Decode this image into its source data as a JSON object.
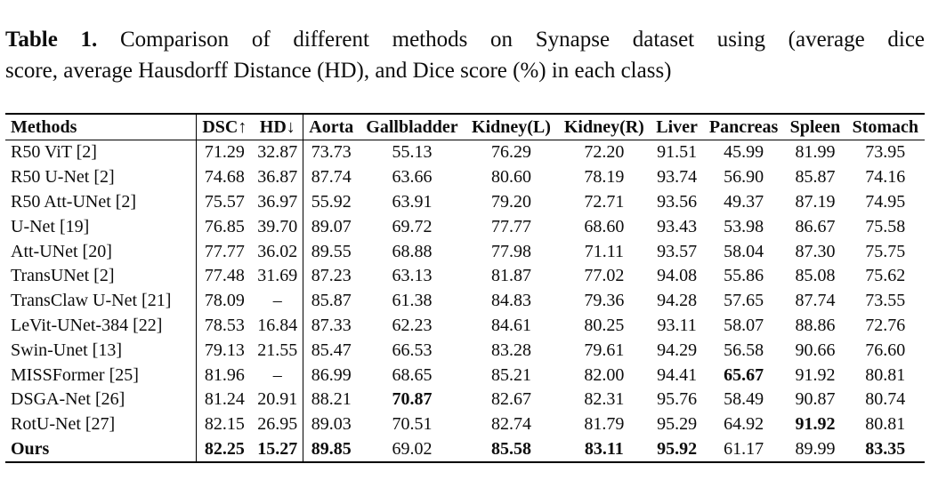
{
  "caption": {
    "label": "Table 1.",
    "line1": "Comparison of different methods on Synapse dataset using (average dice",
    "line2": "score, average Hausdorff Distance (HD), and Dice score (%) in each class)"
  },
  "table": {
    "columns": [
      {
        "key": "methods",
        "label": "Methods"
      },
      {
        "key": "dsc",
        "label": "DSC↑"
      },
      {
        "key": "hd",
        "label": "HD↓"
      },
      {
        "key": "aorta",
        "label": "Aorta"
      },
      {
        "key": "gallbladder",
        "label": "Gallbladder"
      },
      {
        "key": "kidney-l",
        "label": "Kidney(L)"
      },
      {
        "key": "kidney-r",
        "label": "Kidney(R)"
      },
      {
        "key": "liver",
        "label": "Liver"
      },
      {
        "key": "pancreas",
        "label": "Pancreas"
      },
      {
        "key": "spleen",
        "label": "Spleen"
      },
      {
        "key": "stomach",
        "label": "Stomach"
      }
    ],
    "rows": [
      {
        "method": "R50 ViT [2]",
        "bold_method": false,
        "values": [
          "71.29",
          "32.87",
          "73.73",
          "55.13",
          "76.29",
          "72.20",
          "91.51",
          "45.99",
          "81.99",
          "73.95"
        ],
        "bold": []
      },
      {
        "method": "R50 U-Net [2]",
        "bold_method": false,
        "values": [
          "74.68",
          "36.87",
          "87.74",
          "63.66",
          "80.60",
          "78.19",
          "93.74",
          "56.90",
          "85.87",
          "74.16"
        ],
        "bold": []
      },
      {
        "method": "R50 Att-UNet [2]",
        "bold_method": false,
        "values": [
          "75.57",
          "36.97",
          "55.92",
          "63.91",
          "79.20",
          "72.71",
          "93.56",
          "49.37",
          "87.19",
          "74.95"
        ],
        "bold": []
      },
      {
        "method": "U-Net [19]",
        "bold_method": false,
        "values": [
          "76.85",
          "39.70",
          "89.07",
          "69.72",
          "77.77",
          "68.60",
          "93.43",
          "53.98",
          "86.67",
          "75.58"
        ],
        "bold": []
      },
      {
        "method": "Att-UNet [20]",
        "bold_method": false,
        "values": [
          "77.77",
          "36.02",
          "89.55",
          "68.88",
          "77.98",
          "71.11",
          "93.57",
          "58.04",
          "87.30",
          "75.75"
        ],
        "bold": []
      },
      {
        "method": "TransUNet [2]",
        "bold_method": false,
        "values": [
          "77.48",
          "31.69",
          "87.23",
          "63.13",
          "81.87",
          "77.02",
          "94.08",
          "55.86",
          "85.08",
          "75.62"
        ],
        "bold": []
      },
      {
        "method": "TransClaw U-Net [21]",
        "bold_method": false,
        "values": [
          "78.09",
          "–",
          "85.87",
          "61.38",
          "84.83",
          "79.36",
          "94.28",
          "57.65",
          "87.74",
          "73.55"
        ],
        "bold": []
      },
      {
        "method": "LeVit-UNet-384 [22]",
        "bold_method": false,
        "values": [
          "78.53",
          "16.84",
          "87.33",
          "62.23",
          "84.61",
          "80.25",
          "93.11",
          "58.07",
          "88.86",
          "72.76"
        ],
        "bold": []
      },
      {
        "method": "Swin-Unet [13]",
        "bold_method": false,
        "values": [
          "79.13",
          "21.55",
          "85.47",
          "66.53",
          "83.28",
          "79.61",
          "94.29",
          "56.58",
          "90.66",
          "76.60"
        ],
        "bold": []
      },
      {
        "method": "MISSFormer [25]",
        "bold_method": false,
        "values": [
          "81.96",
          "–",
          "86.99",
          "68.65",
          "85.21",
          "82.00",
          "94.41",
          "65.67",
          "91.92",
          "80.81"
        ],
        "bold": [
          7
        ]
      },
      {
        "method": "DSGA-Net [26]",
        "bold_method": false,
        "values": [
          "81.24",
          "20.91",
          "88.21",
          "70.87",
          "82.67",
          "82.31",
          "95.76",
          "58.49",
          "90.87",
          "80.74"
        ],
        "bold": [
          3
        ]
      },
      {
        "method": "RotU-Net [27]",
        "bold_method": false,
        "values": [
          "82.15",
          "26.95",
          "89.03",
          "70.51",
          "82.74",
          "81.79",
          "95.29",
          "64.92",
          "91.92",
          "80.81"
        ],
        "bold": [
          8
        ]
      },
      {
        "method": "Ours",
        "bold_method": true,
        "values": [
          "82.25",
          "15.27",
          "89.85",
          "69.02",
          "85.58",
          "83.11",
          "95.92",
          "61.17",
          "89.99",
          "83.35"
        ],
        "bold": [
          0,
          1,
          2,
          4,
          5,
          6,
          9
        ]
      }
    ]
  }
}
